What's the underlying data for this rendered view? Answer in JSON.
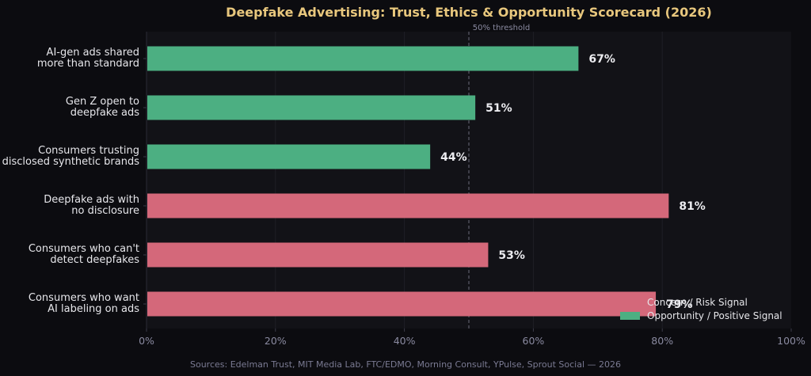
{
  "chart_data": {
    "type": "bar",
    "orientation": "horizontal",
    "title": "Deepfake Advertising: Trust, Ethics & Opportunity Scorecard (2026)",
    "categories": [
      [
        "AI-gen ads shared",
        "more than standard"
      ],
      [
        "Gen Z open to",
        "deepfake ads"
      ],
      [
        "Consumers trusting",
        "disclosed synthetic brands"
      ],
      [
        "Deepfake ads with",
        "no disclosure"
      ],
      [
        "Consumers who can't",
        "detect deepfakes"
      ],
      [
        "Consumers who want",
        "AI labeling on ads"
      ]
    ],
    "values": [
      67,
      51,
      44,
      81,
      53,
      79
    ],
    "value_labels": [
      "67%",
      "51%",
      "44%",
      "81%",
      "53%",
      "79%"
    ],
    "bar_groups": [
      "opportunity",
      "opportunity",
      "opportunity",
      "concern",
      "concern",
      "concern"
    ],
    "xlim": [
      0,
      100
    ],
    "xticks": [
      0,
      20,
      40,
      60,
      80,
      100
    ],
    "xtick_labels": [
      "0%",
      "20%",
      "40%",
      "60%",
      "80%",
      "100%"
    ],
    "threshold": {
      "value": 50,
      "label": "50% threshold"
    },
    "legend": {
      "placement": "bottom-right",
      "entries": [
        {
          "label": "Concern / Risk Signal",
          "color": "#d4687a"
        },
        {
          "label": "Opportunity / Positive Signal",
          "color": "#4caf82"
        }
      ]
    },
    "colors": {
      "opportunity": "#4caf82",
      "concern": "#d4687a",
      "background": "#0c0c10",
      "plot_background": "#121217",
      "title": "#e8c77d"
    },
    "grid": "vertical",
    "source": "Sources: Edelman Trust, MIT Media Lab, FTC/EDMO, Morning Consult, YPulse, Sprout Social — 2026"
  }
}
